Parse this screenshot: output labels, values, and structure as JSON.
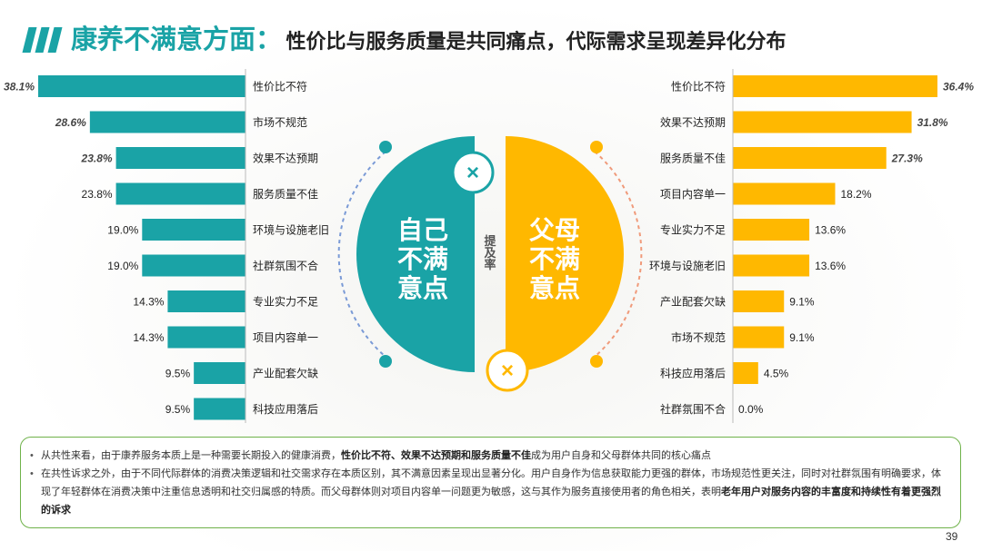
{
  "header": {
    "title_main": "康养不满意方面：",
    "title_sub": "性价比与服务质量是共同痛点，代际需求呈现差异化分布"
  },
  "center": {
    "left_label": "自己\n不满\n意点",
    "right_label": "父母\n不满\n意点",
    "middle_label": "提\n及\n率",
    "mark_glyph": "×"
  },
  "colors": {
    "teal": "#1aa3a6",
    "yellow": "#ffb800",
    "green_border": "#6fb24a"
  },
  "chart_data": [
    {
      "type": "bar",
      "orientation": "horizontal",
      "series_name": "自己不满意点",
      "categories": [
        "性价比不符",
        "市场不规范",
        "效果不达预期",
        "服务质量不佳",
        "环境与设施老旧",
        "社群氛围不合",
        "专业实力不足",
        "项目内容单一",
        "产业配套欠缺",
        "科技应用落后"
      ],
      "values": [
        38.1,
        28.6,
        23.8,
        23.8,
        19.0,
        19.0,
        14.3,
        14.3,
        9.5,
        9.5
      ],
      "labels": [
        "38.1%",
        "28.6%",
        "23.8%",
        "23.8%",
        "19.0%",
        "19.0%",
        "14.3%",
        "14.3%",
        "9.5%",
        "9.5%"
      ],
      "highlighted_count": 3,
      "xlim": [
        0,
        40
      ]
    },
    {
      "type": "bar",
      "orientation": "horizontal",
      "series_name": "父母不满意点",
      "categories": [
        "性价比不符",
        "效果不达预期",
        "服务质量不佳",
        "项目内容单一",
        "专业实力不足",
        "环境与设施老旧",
        "产业配套欠缺",
        "市场不规范",
        "科技应用落后",
        "社群氛围不合"
      ],
      "values": [
        36.4,
        31.8,
        27.3,
        18.2,
        13.6,
        13.6,
        9.1,
        9.1,
        4.5,
        0.0
      ],
      "labels": [
        "36.4%",
        "31.8%",
        "27.3%",
        "18.2%",
        "13.6%",
        "13.6%",
        "9.1%",
        "9.1%",
        "4.5%",
        "0.0%"
      ],
      "highlighted_count": 3,
      "xlim": [
        0,
        40
      ]
    }
  ],
  "notes": [
    [
      {
        "t": "从共性来看，由于康养服务本质上是一种需要长期投入的健康消费，",
        "b": false
      },
      {
        "t": "性价比不符、效果不达预期和服务质量不佳",
        "b": true
      },
      {
        "t": "成为用户自身和父母群体共同的核心痛点",
        "b": false
      }
    ],
    [
      {
        "t": "在共性诉求之外，由于不同代际群体的消费决策逻辑和社交需求存在本质区别，其不满意因素呈现出显著分化。用户自身作为信息获取能力更强的群体，市场规范性更关注，同时对社群氛围有明确要求，体现了年轻群体在消费决策中注重信息透明和社交归属感的特质。而父母群体则对项目内容单一问题更为敏感，这与其作为服务直接使用者的角色相关，表明",
        "b": false
      },
      {
        "t": "老年用户对服务内容的丰富度和持续性有着更强烈的诉求",
        "b": true
      }
    ]
  ],
  "page_number": "39"
}
